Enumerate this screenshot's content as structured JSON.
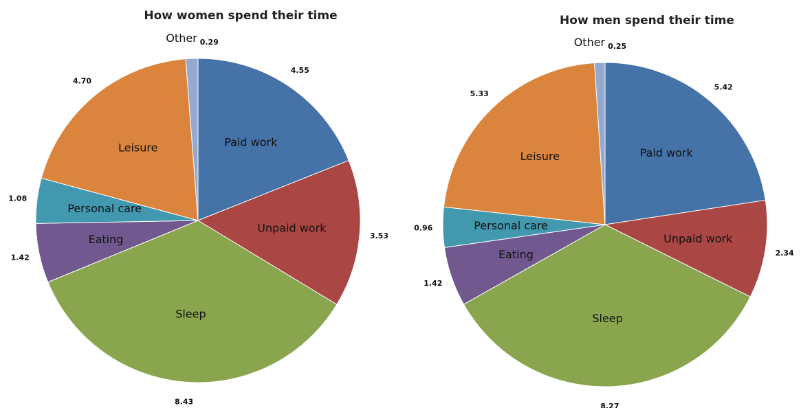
{
  "chart_data": [
    {
      "type": "pie",
      "title": "How women spend their time",
      "slices": [
        {
          "label": "Paid work",
          "value": 4.55,
          "color": "#4572a7"
        },
        {
          "label": "Unpaid work",
          "value": 3.53,
          "color": "#aa4643"
        },
        {
          "label": "Sleep",
          "value": 8.43,
          "color": "#89a54e"
        },
        {
          "label": "Eating",
          "value": 1.42,
          "color": "#71588f"
        },
        {
          "label": "Personal care",
          "value": 1.08,
          "color": "#4198af"
        },
        {
          "label": "Leisure",
          "value": 4.7,
          "color": "#db843d"
        },
        {
          "label": "Other",
          "value": 0.29,
          "color": "#93a9cf"
        }
      ]
    },
    {
      "type": "pie",
      "title": "How men spend their time",
      "slices": [
        {
          "label": "Paid work",
          "value": 5.42,
          "color": "#4572a7"
        },
        {
          "label": "Unpaid work",
          "value": 2.34,
          "color": "#aa4643"
        },
        {
          "label": "Sleep",
          "value": 8.27,
          "color": "#89a54e"
        },
        {
          "label": "Eating",
          "value": 1.42,
          "color": "#71588f"
        },
        {
          "label": "Personal care",
          "value": 0.96,
          "color": "#4198af"
        },
        {
          "label": "Leisure",
          "value": 5.33,
          "color": "#db843d"
        },
        {
          "label": "Other",
          "value": 0.25,
          "color": "#93a9cf"
        }
      ]
    }
  ]
}
